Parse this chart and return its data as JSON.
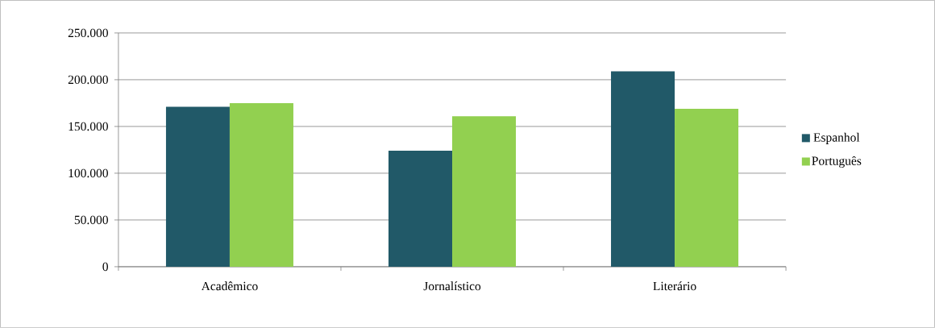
{
  "chart_data": {
    "type": "bar",
    "categories": [
      "Acadêmico",
      "Jornalístico",
      "Literário"
    ],
    "series": [
      {
        "name": "Espanhol",
        "color": "#215968",
        "values": [
          171000,
          124000,
          209000
        ]
      },
      {
        "name": "Português",
        "color": "#92d050",
        "values": [
          175000,
          161000,
          169000
        ]
      }
    ],
    "ylim": [
      0,
      250000
    ],
    "yticks": [
      {
        "value": 0,
        "label": "0"
      },
      {
        "value": 50000,
        "label": "50.000"
      },
      {
        "value": 100000,
        "label": "100.000"
      },
      {
        "value": 150000,
        "label": "150.000"
      },
      {
        "value": 200000,
        "label": "200.000"
      },
      {
        "value": 250000,
        "label": "250.000"
      }
    ],
    "grid": "y",
    "legend": "right"
  }
}
